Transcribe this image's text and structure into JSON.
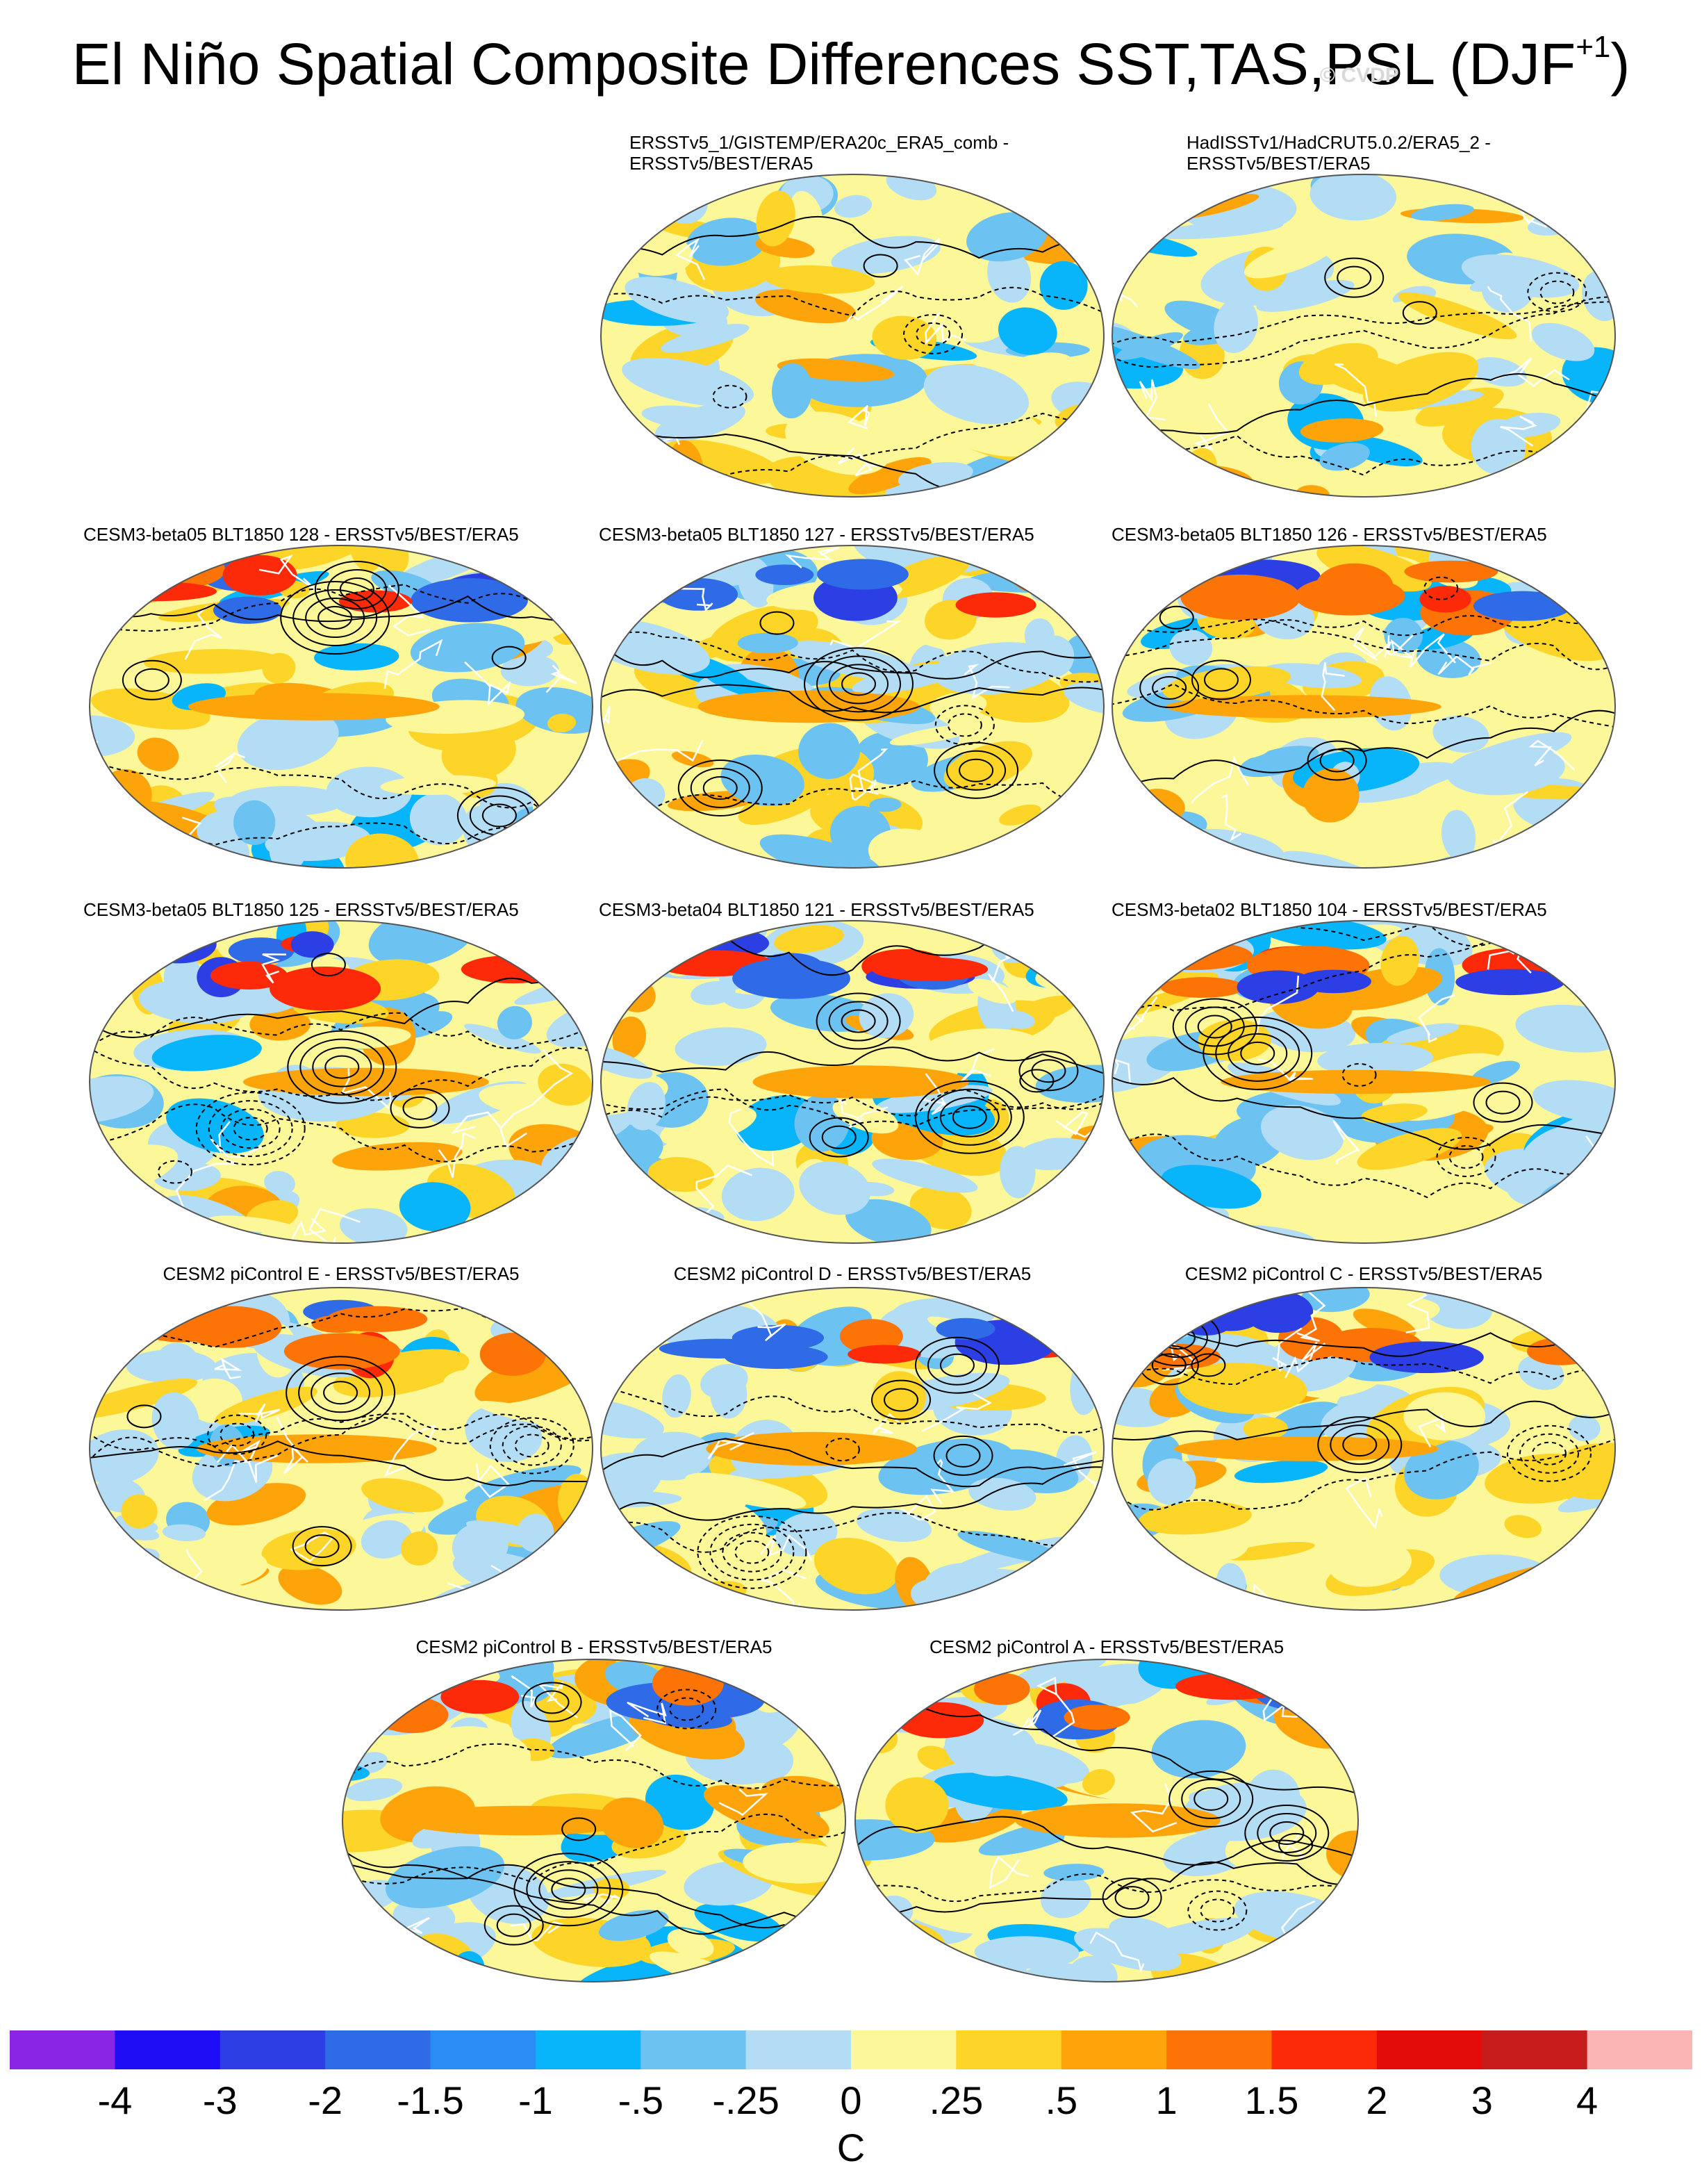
{
  "title_main": "El Niño Spatial Composite Differences SST,TAS,PSL (DJF",
  "title_sup": "+1",
  "title_close": ")",
  "watermark": "© CVDP",
  "units": "C",
  "chart_data": {
    "type": "heatmap",
    "title": "El Niño Spatial Composite Differences SST,TAS,PSL (DJF+1)",
    "colorbar": {
      "unit": "C",
      "labels": [
        "-4",
        "-3",
        "-2",
        "-1.5",
        "-1",
        "-.5",
        "-.25",
        "0",
        ".25",
        ".5",
        "1",
        "1.5",
        "2",
        "3",
        "4"
      ],
      "levels": [
        -4,
        -3,
        -2,
        -1.5,
        -1,
        -0.5,
        -0.25,
        0,
        0.25,
        0.5,
        1,
        1.5,
        2,
        3,
        4
      ],
      "colors": [
        "#8a25e6",
        "#1f0df5",
        "#2c3fe4",
        "#2f6be6",
        "#2a8cf5",
        "#08b4fa",
        "#6cc3f2",
        "#b3dcf5",
        "#fcf799",
        "#fdd528",
        "#fca40a",
        "#fc7306",
        "#fc2a08",
        "#e40b0b",
        "#c81c1c",
        "#fbb5b5"
      ]
    },
    "panels": [
      {
        "title_line1": "ERSSTv5_1/GISTEMP/ERA20c_ERA5_comb -",
        "title_line2": "ERSSTv5/BEST/ERA5"
      },
      {
        "title_line1": "HadISSTv1/HadCRUT5.0.2/ERA5_2 -",
        "title_line2": "ERSSTv5/BEST/ERA5"
      },
      {
        "title_line1": "CESM3-beta05 BLT1850 128 - ERSSTv5/BEST/ERA5"
      },
      {
        "title_line1": "CESM3-beta05 BLT1850 127 - ERSSTv5/BEST/ERA5"
      },
      {
        "title_line1": "CESM3-beta05 BLT1850 126 - ERSSTv5/BEST/ERA5"
      },
      {
        "title_line1": "CESM3-beta05 BLT1850 125 - ERSSTv5/BEST/ERA5"
      },
      {
        "title_line1": "CESM3-beta04 BLT1850 121 - ERSSTv5/BEST/ERA5"
      },
      {
        "title_line1": "CESM3-beta02 BLT1850 104 - ERSSTv5/BEST/ERA5"
      },
      {
        "title_line1": "CESM2 piControl E - ERSSTv5/BEST/ERA5"
      },
      {
        "title_line1": "CESM2 piControl D - ERSSTv5/BEST/ERA5"
      },
      {
        "title_line1": "CESM2 piControl C - ERSSTv5/BEST/ERA5"
      },
      {
        "title_line1": "CESM2 piControl B - ERSSTv5/BEST/ERA5"
      },
      {
        "title_line1": "CESM2 piControl A - ERSSTv5/BEST/ERA5"
      }
    ]
  }
}
